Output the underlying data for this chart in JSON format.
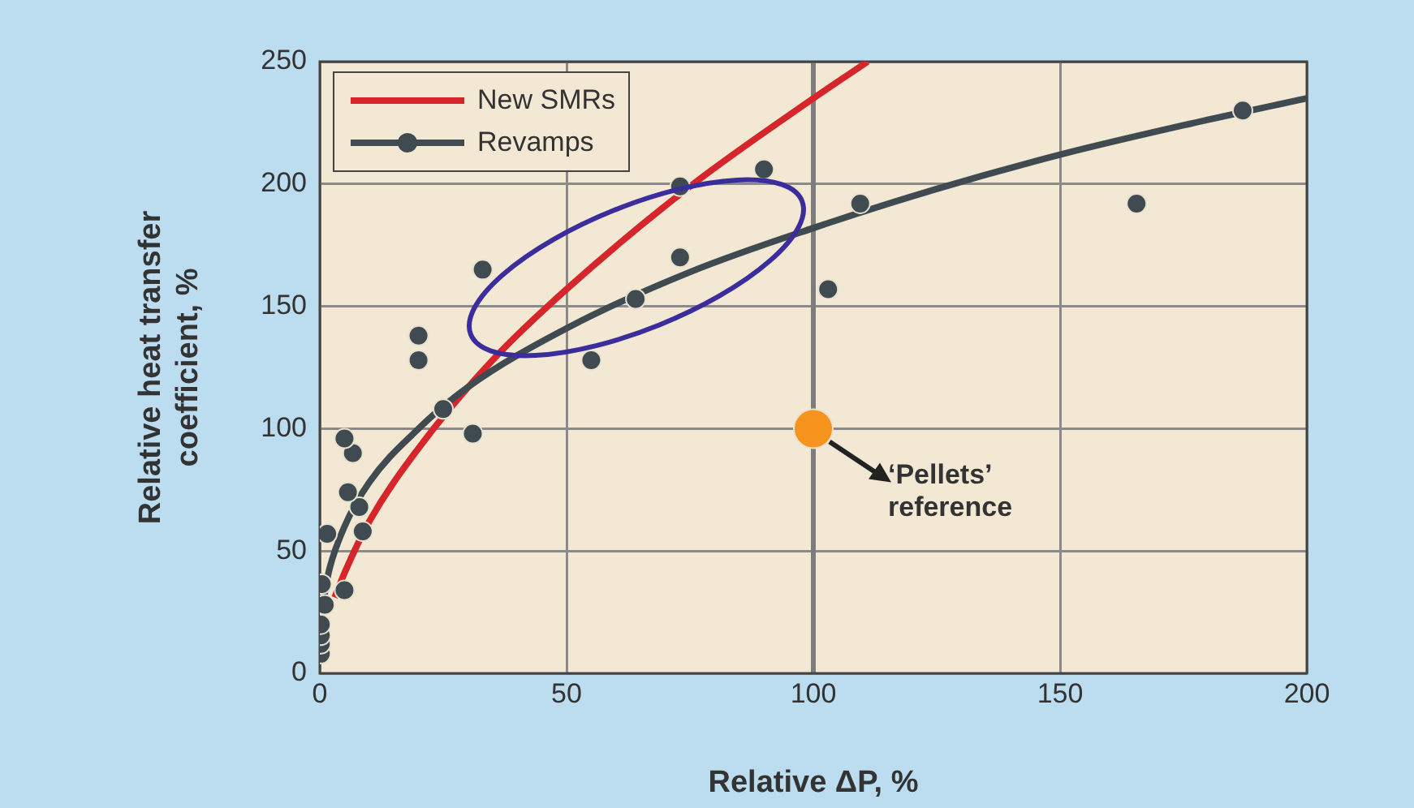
{
  "chart_data": {
    "type": "scatter",
    "xlabel": "Relative ΔP, %",
    "ylabel": "Relative heat transfer coefficient, %",
    "xlim": [
      0,
      200
    ],
    "xticks": [
      0,
      50,
      100,
      150,
      200
    ],
    "ylim": [
      0,
      250
    ],
    "yticks": [
      0,
      50,
      100,
      150,
      200,
      250
    ],
    "grid": true,
    "legend": "top left",
    "ref_lines": [
      {
        "axis": "x",
        "value": 100,
        "color": "#7d7d7d"
      }
    ],
    "annotations": [
      {
        "text": "‘Pellets’ reference",
        "x": 100,
        "y": 100
      }
    ],
    "series": [
      {
        "name": "New SMRs",
        "type": "line",
        "color": "#d7262b",
        "marker": "none",
        "x": [
          3,
          5,
          10,
          20,
          35,
          50,
          75,
          100,
          111
        ],
        "values": [
          31,
          41,
          62,
          92,
          128,
          157,
          199,
          235,
          250
        ]
      },
      {
        "type": "line",
        "color": "#3f4b50",
        "marker": "none",
        "x": [
          0.5,
          1,
          2,
          5,
          10,
          20,
          30,
          50,
          75,
          100,
          125,
          150,
          175,
          200
        ],
        "values": [
          26,
          33,
          43,
          60,
          78,
          100,
          117,
          141,
          164,
          182,
          198,
          212,
          224,
          235
        ]
      },
      {
        "name": "Revamps",
        "color": "#3f4b50",
        "marker": "circle",
        "x": [
          0.2,
          0.2,
          0.2,
          0.2,
          1,
          0.4,
          5,
          1.5,
          8.7,
          8,
          5.7,
          6.7,
          5,
          25,
          31,
          20,
          20,
          33,
          55,
          64,
          73,
          90,
          73,
          109.5,
          103,
          165.5,
          187
        ],
        "values": [
          8,
          12,
          15.5,
          20,
          28,
          36.5,
          34,
          57,
          58,
          68,
          74,
          90,
          96,
          108,
          98,
          128,
          138,
          165,
          128,
          153,
          199,
          206,
          170,
          192,
          157,
          192,
          230
        ]
      },
      {
        "color": "#f7941d",
        "marker": "circle",
        "x": [
          100
        ],
        "values": [
          100
        ]
      }
    ]
  }
}
